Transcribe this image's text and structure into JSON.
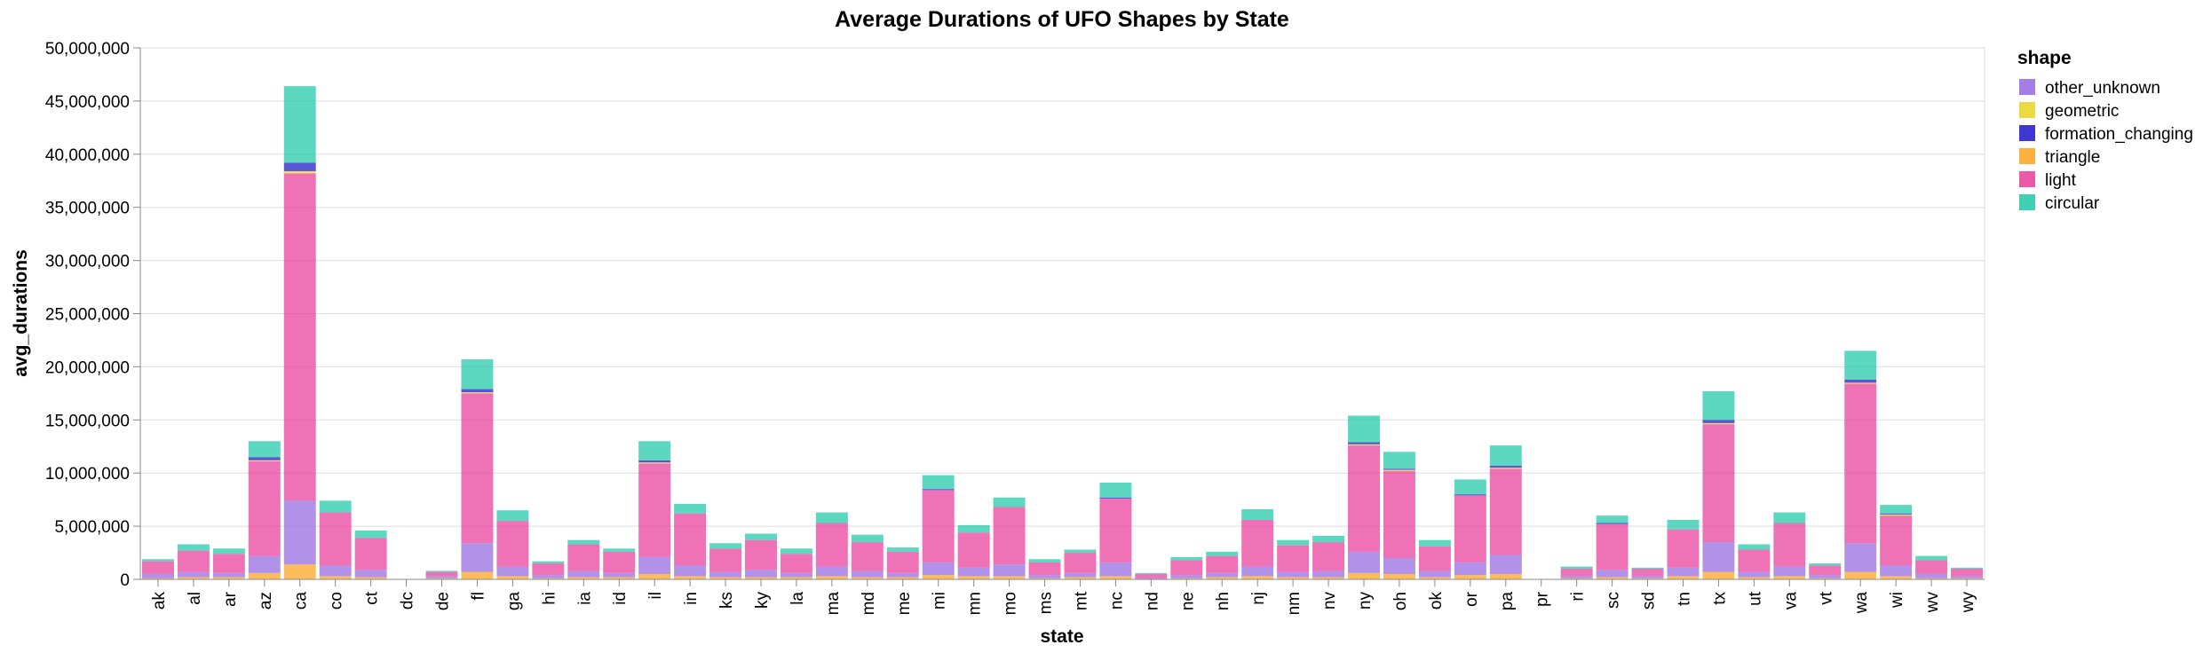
{
  "chart_data": {
    "type": "bar",
    "stacked": true,
    "title": "Average Durations of UFO Shapes by State",
    "xlabel": "state",
    "ylabel": "avg_durations",
    "ylim": [
      0,
      50000000
    ],
    "yticks": [
      0,
      5000000,
      10000000,
      15000000,
      20000000,
      25000000,
      30000000,
      35000000,
      40000000,
      45000000,
      50000000
    ],
    "grid": true,
    "legend_title": "shape",
    "legend_position": "right",
    "categories": [
      "ak",
      "al",
      "ar",
      "az",
      "ca",
      "co",
      "ct",
      "dc",
      "de",
      "fl",
      "ga",
      "hi",
      "ia",
      "id",
      "il",
      "in",
      "ks",
      "ky",
      "la",
      "ma",
      "md",
      "me",
      "mi",
      "mn",
      "mo",
      "ms",
      "mt",
      "nc",
      "nd",
      "ne",
      "nh",
      "nj",
      "nm",
      "nv",
      "ny",
      "oh",
      "ok",
      "or",
      "pa",
      "pr",
      "ri",
      "sc",
      "sd",
      "tn",
      "tx",
      "ut",
      "va",
      "vt",
      "wa",
      "wi",
      "wv",
      "wy"
    ],
    "stack_order": [
      "triangle",
      "other_unknown",
      "light",
      "geometric",
      "formation_changing",
      "circular"
    ],
    "series": [
      {
        "name": "other_unknown",
        "color": "#9467e0",
        "values": [
          400000,
          500000,
          400000,
          1600000,
          6000000,
          1000000,
          700000,
          0,
          200000,
          2700000,
          900000,
          300000,
          600000,
          400000,
          1600000,
          1000000,
          500000,
          700000,
          400000,
          900000,
          600000,
          400000,
          1200000,
          800000,
          1100000,
          300000,
          400000,
          1300000,
          100000,
          300000,
          400000,
          900000,
          500000,
          600000,
          2000000,
          1500000,
          600000,
          1200000,
          1800000,
          0,
          200000,
          700000,
          200000,
          800000,
          2800000,
          500000,
          900000,
          300000,
          2700000,
          1000000,
          400000,
          200000
        ]
      },
      {
        "name": "geometric",
        "color": "#e8d51f",
        "values": [
          0,
          0,
          0,
          100000,
          200000,
          0,
          0,
          0,
          0,
          100000,
          0,
          0,
          0,
          0,
          100000,
          0,
          0,
          0,
          0,
          0,
          0,
          0,
          0,
          0,
          0,
          0,
          0,
          0,
          0,
          0,
          0,
          0,
          0,
          0,
          100000,
          100000,
          0,
          0,
          100000,
          0,
          0,
          0,
          0,
          0,
          100000,
          0,
          0,
          0,
          100000,
          100000,
          0,
          0
        ]
      },
      {
        "name": "formation_changing",
        "color": "#1c14c9",
        "values": [
          0,
          0,
          0,
          300000,
          800000,
          0,
          0,
          0,
          0,
          300000,
          0,
          0,
          0,
          0,
          200000,
          0,
          0,
          0,
          0,
          0,
          0,
          0,
          100000,
          0,
          0,
          0,
          0,
          100000,
          0,
          0,
          0,
          0,
          0,
          0,
          200000,
          100000,
          0,
          100000,
          200000,
          0,
          0,
          100000,
          0,
          0,
          300000,
          0,
          0,
          0,
          300000,
          100000,
          0,
          0
        ]
      },
      {
        "name": "triangle",
        "color": "#ffa21c",
        "values": [
          100000,
          200000,
          200000,
          600000,
          1400000,
          300000,
          200000,
          0,
          100000,
          700000,
          300000,
          100000,
          200000,
          200000,
          500000,
          300000,
          200000,
          200000,
          200000,
          300000,
          200000,
          200000,
          400000,
          300000,
          300000,
          100000,
          200000,
          300000,
          0,
          100000,
          200000,
          300000,
          200000,
          200000,
          600000,
          500000,
          200000,
          400000,
          500000,
          0,
          100000,
          200000,
          100000,
          300000,
          700000,
          200000,
          300000,
          100000,
          700000,
          300000,
          100000,
          100000
        ]
      },
      {
        "name": "light",
        "color": "#e83c98",
        "values": [
          1200000,
          2000000,
          1800000,
          8900000,
          30800000,
          5000000,
          3000000,
          0,
          400000,
          14100000,
          4300000,
          1100000,
          2500000,
          2000000,
          8800000,
          4900000,
          2200000,
          2800000,
          1800000,
          4100000,
          2700000,
          2000000,
          6800000,
          3300000,
          5400000,
          1200000,
          1900000,
          6000000,
          400000,
          1400000,
          1600000,
          4400000,
          2500000,
          2700000,
          10000000,
          8200000,
          2300000,
          6300000,
          8100000,
          0,
          700000,
          4300000,
          700000,
          3600000,
          11100000,
          2100000,
          4100000,
          900000,
          15000000,
          4700000,
          1300000,
          700000
        ]
      },
      {
        "name": "circular",
        "color": "#1ec9a8",
        "values": [
          200000,
          600000,
          500000,
          1500000,
          7200000,
          1100000,
          700000,
          0,
          100000,
          2800000,
          1000000,
          200000,
          400000,
          300000,
          1800000,
          900000,
          500000,
          600000,
          500000,
          1000000,
          700000,
          400000,
          1300000,
          700000,
          900000,
          300000,
          300000,
          1400000,
          100000,
          300000,
          400000,
          1000000,
          500000,
          600000,
          2500000,
          1600000,
          600000,
          1400000,
          1900000,
          0,
          200000,
          700000,
          100000,
          900000,
          2700000,
          500000,
          1000000,
          200000,
          2700000,
          800000,
          400000,
          100000
        ]
      }
    ]
  }
}
